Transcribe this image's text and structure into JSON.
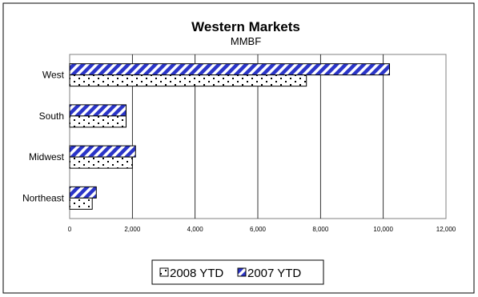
{
  "chart_data": {
    "type": "bar",
    "orientation": "horizontal",
    "title": "Western Markets",
    "subtitle": "MMBF",
    "categories": [
      "West",
      "South",
      "Midwest",
      "Northeast"
    ],
    "series": [
      {
        "name": "2008 YTD",
        "values": [
          7550,
          1800,
          2000,
          720
        ],
        "pattern": "dots",
        "color": "#000000"
      },
      {
        "name": "2007 YTD",
        "values": [
          10200,
          1800,
          2100,
          850
        ],
        "pattern": "diagonal-stripes",
        "color": "#2b35c8"
      }
    ],
    "xlim": [
      0,
      12000
    ],
    "xticks": [
      "0",
      "2,000",
      "4,000",
      "6,000",
      "8,000",
      "10,000",
      "12,000"
    ],
    "xtick_values": [
      0,
      2000,
      4000,
      6000,
      8000,
      10000,
      12000
    ],
    "grid": true,
    "legend_position": "bottom"
  }
}
